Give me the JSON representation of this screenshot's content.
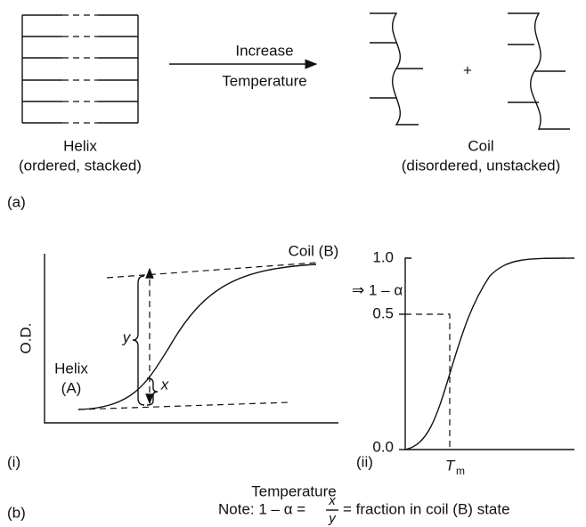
{
  "panel_a": {
    "arrow_top": "Increase",
    "arrow_bottom": "Temperature",
    "helix_label": "Helix",
    "helix_sub": "(ordered, stacked)",
    "plus": "+",
    "coil_label": "Coil",
    "coil_sub": "(disordered, unstacked)",
    "tag": "(a)"
  },
  "panel_b": {
    "plot_i": {
      "coil_label": "Coil (B)",
      "y_axis": "O.D.",
      "y_marker": "y",
      "x_marker": "x",
      "helix_label": "Helix",
      "helix_sub": "(A)",
      "tag": "(i)"
    },
    "plot_ii": {
      "y_axis": "⇒ 1 – α",
      "ticks": [
        "1.0",
        "0.5",
        "0.0"
      ],
      "tag": "(ii)",
      "tm": "T",
      "tm_sub": "m"
    },
    "x_axis": "Temperature",
    "tag": "(b)",
    "note_prefix": "Note: 1 – α =",
    "note_num": "x",
    "note_den": "y",
    "note_suffix": "= fraction in coil (B) state"
  }
}
